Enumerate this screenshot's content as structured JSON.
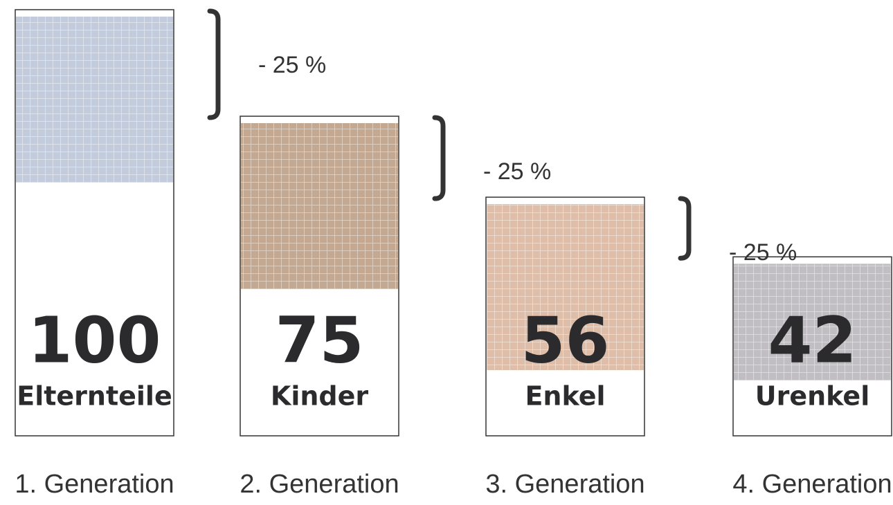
{
  "chart_data": {
    "type": "bar",
    "categories": [
      "1. Generation",
      "2. Generation",
      "3. Generation",
      "4. Generation"
    ],
    "values": [
      100,
      75,
      56,
      42
    ],
    "bar_labels": [
      "Elternteile",
      "Kinder",
      "Enkel",
      "Urenkel"
    ],
    "photo_colors": [
      "#b9c3d6",
      "#b89a7e",
      "#d9b39a",
      "#b5b3b8"
    ],
    "annotations": [
      "- 25 %",
      "- 25 %",
      "- 25 %"
    ]
  }
}
